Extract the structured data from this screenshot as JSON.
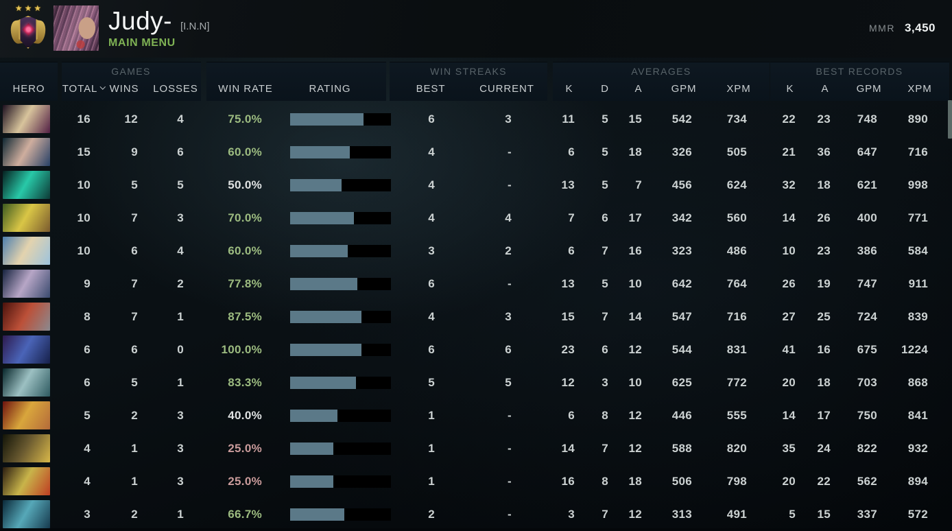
{
  "header": {
    "player_name": "Judy-",
    "clan_tag": "[I.N.N]",
    "menu_label": "MAIN MENU",
    "rank_stars": "★★★",
    "mmr_label": "MMR",
    "mmr_value": "3,450"
  },
  "table": {
    "groups": {
      "games": "GAMES",
      "win_streaks": "WIN STREAKS",
      "averages": "AVERAGES",
      "best_records": "BEST RECORDS"
    },
    "columns": {
      "hero": "HERO",
      "total": "TOTAL",
      "wins": "WINS",
      "losses": "LOSSES",
      "win_rate": "WIN RATE",
      "rating": "RATING",
      "best": "BEST",
      "current": "CURRENT",
      "k": "K",
      "d": "D",
      "a": "A",
      "gpm": "GPM",
      "xpm": "XPM"
    },
    "rows": [
      {
        "hero": "invoker",
        "portrait": [
          "#1c0f1e",
          "#d8c49c",
          "#521f44"
        ],
        "total": 16,
        "wins": 12,
        "losses": 4,
        "win_rate": "75.0%",
        "win_rate_level": "high",
        "rating_percent": 73,
        "best_streak": "6",
        "current_streak": "3",
        "avg": {
          "k": 11,
          "d": 5,
          "a": 15,
          "gpm": 542,
          "xpm": 734
        },
        "best": {
          "k": 22,
          "a": 23,
          "gpm": 748,
          "xpm": 890
        }
      },
      {
        "hero": "mirana",
        "portrait": [
          "#0f2733",
          "#cfae9e",
          "#274066"
        ],
        "total": 15,
        "wins": 9,
        "losses": 6,
        "win_rate": "60.0%",
        "win_rate_level": "high",
        "rating_percent": 59,
        "best_streak": "4",
        "current_streak": "-",
        "avg": {
          "k": 6,
          "d": 5,
          "a": 18,
          "gpm": 326,
          "xpm": 505
        },
        "best": {
          "k": 21,
          "a": 36,
          "gpm": 647,
          "xpm": 716
        }
      },
      {
        "hero": "venomancer",
        "portrait": [
          "#06201f",
          "#28c9a8",
          "#0d3a36"
        ],
        "total": 10,
        "wins": 5,
        "losses": 5,
        "win_rate": "50.0%",
        "win_rate_level": "mid",
        "rating_percent": 51,
        "best_streak": "4",
        "current_streak": "-",
        "avg": {
          "k": 13,
          "d": 5,
          "a": 7,
          "gpm": 456,
          "xpm": 624
        },
        "best": {
          "k": 32,
          "a": 18,
          "gpm": 621,
          "xpm": 998
        }
      },
      {
        "hero": "meepo",
        "portrait": [
          "#3d5a20",
          "#d9c646",
          "#7a5a2e"
        ],
        "total": 10,
        "wins": 7,
        "losses": 3,
        "win_rate": "70.0%",
        "win_rate_level": "high",
        "rating_percent": 63,
        "best_streak": "4",
        "current_streak": "4",
        "avg": {
          "k": 7,
          "d": 6,
          "a": 17,
          "gpm": 342,
          "xpm": 560
        },
        "best": {
          "k": 14,
          "a": 26,
          "gpm": 400,
          "xpm": 771
        }
      },
      {
        "hero": "crystal-maiden",
        "portrait": [
          "#4d7fae",
          "#e3d3ae",
          "#9cc3dd"
        ],
        "total": 10,
        "wins": 6,
        "losses": 4,
        "win_rate": "60.0%",
        "win_rate_level": "high",
        "rating_percent": 57,
        "best_streak": "3",
        "current_streak": "2",
        "avg": {
          "k": 6,
          "d": 7,
          "a": 16,
          "gpm": 323,
          "xpm": 486
        },
        "best": {
          "k": 10,
          "a": 23,
          "gpm": 386,
          "xpm": 584
        }
      },
      {
        "hero": "drow-ranger",
        "portrait": [
          "#16233f",
          "#b7a6c6",
          "#3a4a6e"
        ],
        "total": 9,
        "wins": 7,
        "losses": 2,
        "win_rate": "77.8%",
        "win_rate_level": "high",
        "rating_percent": 67,
        "best_streak": "6",
        "current_streak": "-",
        "avg": {
          "k": 13,
          "d": 5,
          "a": 10,
          "gpm": 642,
          "xpm": 764
        },
        "best": {
          "k": 26,
          "a": 19,
          "gpm": 747,
          "xpm": 911
        }
      },
      {
        "hero": "axe",
        "portrait": [
          "#4a120c",
          "#bc5038",
          "#8a8a90"
        ],
        "total": 8,
        "wins": 7,
        "losses": 1,
        "win_rate": "87.5%",
        "win_rate_level": "high",
        "rating_percent": 71,
        "best_streak": "4",
        "current_streak": "3",
        "avg": {
          "k": 15,
          "d": 7,
          "a": 14,
          "gpm": 547,
          "xpm": 716
        },
        "best": {
          "k": 27,
          "a": 25,
          "gpm": 724,
          "xpm": 839
        }
      },
      {
        "hero": "riki",
        "portrait": [
          "#2c1a4e",
          "#4a64b8",
          "#16204a"
        ],
        "total": 6,
        "wins": 6,
        "losses": 0,
        "win_rate": "100.0%",
        "win_rate_level": "high",
        "rating_percent": 71,
        "best_streak": "6",
        "current_streak": "6",
        "avg": {
          "k": 23,
          "d": 6,
          "a": 12,
          "gpm": 544,
          "xpm": 831
        },
        "best": {
          "k": 41,
          "a": 16,
          "gpm": 675,
          "xpm": 1224
        }
      },
      {
        "hero": "sven",
        "portrait": [
          "#07262a",
          "#9cc0c2",
          "#2e5a60"
        ],
        "total": 6,
        "wins": 5,
        "losses": 1,
        "win_rate": "83.3%",
        "win_rate_level": "high",
        "rating_percent": 65,
        "best_streak": "5",
        "current_streak": "5",
        "avg": {
          "k": 12,
          "d": 3,
          "a": 10,
          "gpm": 625,
          "xpm": 772
        },
        "best": {
          "k": 20,
          "a": 18,
          "gpm": 703,
          "xpm": 868
        }
      },
      {
        "hero": "legion-commander",
        "portrait": [
          "#6e130e",
          "#d9a63c",
          "#b46a3a"
        ],
        "total": 5,
        "wins": 2,
        "losses": 3,
        "win_rate": "40.0%",
        "win_rate_level": "mid",
        "rating_percent": 47,
        "best_streak": "1",
        "current_streak": "-",
        "avg": {
          "k": 6,
          "d": 8,
          "a": 12,
          "gpm": 446,
          "xpm": 555
        },
        "best": {
          "k": 14,
          "a": 17,
          "gpm": 750,
          "xpm": 841
        }
      },
      {
        "hero": "slark",
        "portrait": [
          "#121408",
          "#6a5a30",
          "#d9b84a"
        ],
        "total": 4,
        "wins": 1,
        "losses": 3,
        "win_rate": "25.0%",
        "win_rate_level": "low",
        "rating_percent": 43,
        "best_streak": "1",
        "current_streak": "-",
        "avg": {
          "k": 14,
          "d": 7,
          "a": 12,
          "gpm": 588,
          "xpm": 820
        },
        "best": {
          "k": 35,
          "a": 24,
          "gpm": 822,
          "xpm": 932
        }
      },
      {
        "hero": "huskar",
        "portrait": [
          "#2a1c10",
          "#c8b44a",
          "#bf3d22"
        ],
        "total": 4,
        "wins": 1,
        "losses": 3,
        "win_rate": "25.0%",
        "win_rate_level": "low",
        "rating_percent": 43,
        "best_streak": "1",
        "current_streak": "-",
        "avg": {
          "k": 16,
          "d": 8,
          "a": 18,
          "gpm": 506,
          "xpm": 798
        },
        "best": {
          "k": 20,
          "a": 22,
          "gpm": 562,
          "xpm": 894
        }
      },
      {
        "hero": "winter-wyvern",
        "portrait": [
          "#0a2838",
          "#56a8b8",
          "#163a4e"
        ],
        "total": 3,
        "wins": 2,
        "losses": 1,
        "win_rate": "66.7%",
        "win_rate_level": "high",
        "rating_percent": 54,
        "best_streak": "2",
        "current_streak": "-",
        "avg": {
          "k": 3,
          "d": 7,
          "a": 12,
          "gpm": 313,
          "xpm": 491
        },
        "best": {
          "k": 5,
          "a": 15,
          "gpm": 337,
          "xpm": 572
        }
      }
    ]
  },
  "colors": {
    "accent_green": "#7fb254",
    "win_rate_high": "#9cbb80",
    "win_rate_mid": "#e0e3e3",
    "win_rate_low": "#c99b9b",
    "rating_bar_fill": "#5b7988",
    "rating_bar_empty": "#000000",
    "scrollbar_thumb": "#5d6b68"
  }
}
